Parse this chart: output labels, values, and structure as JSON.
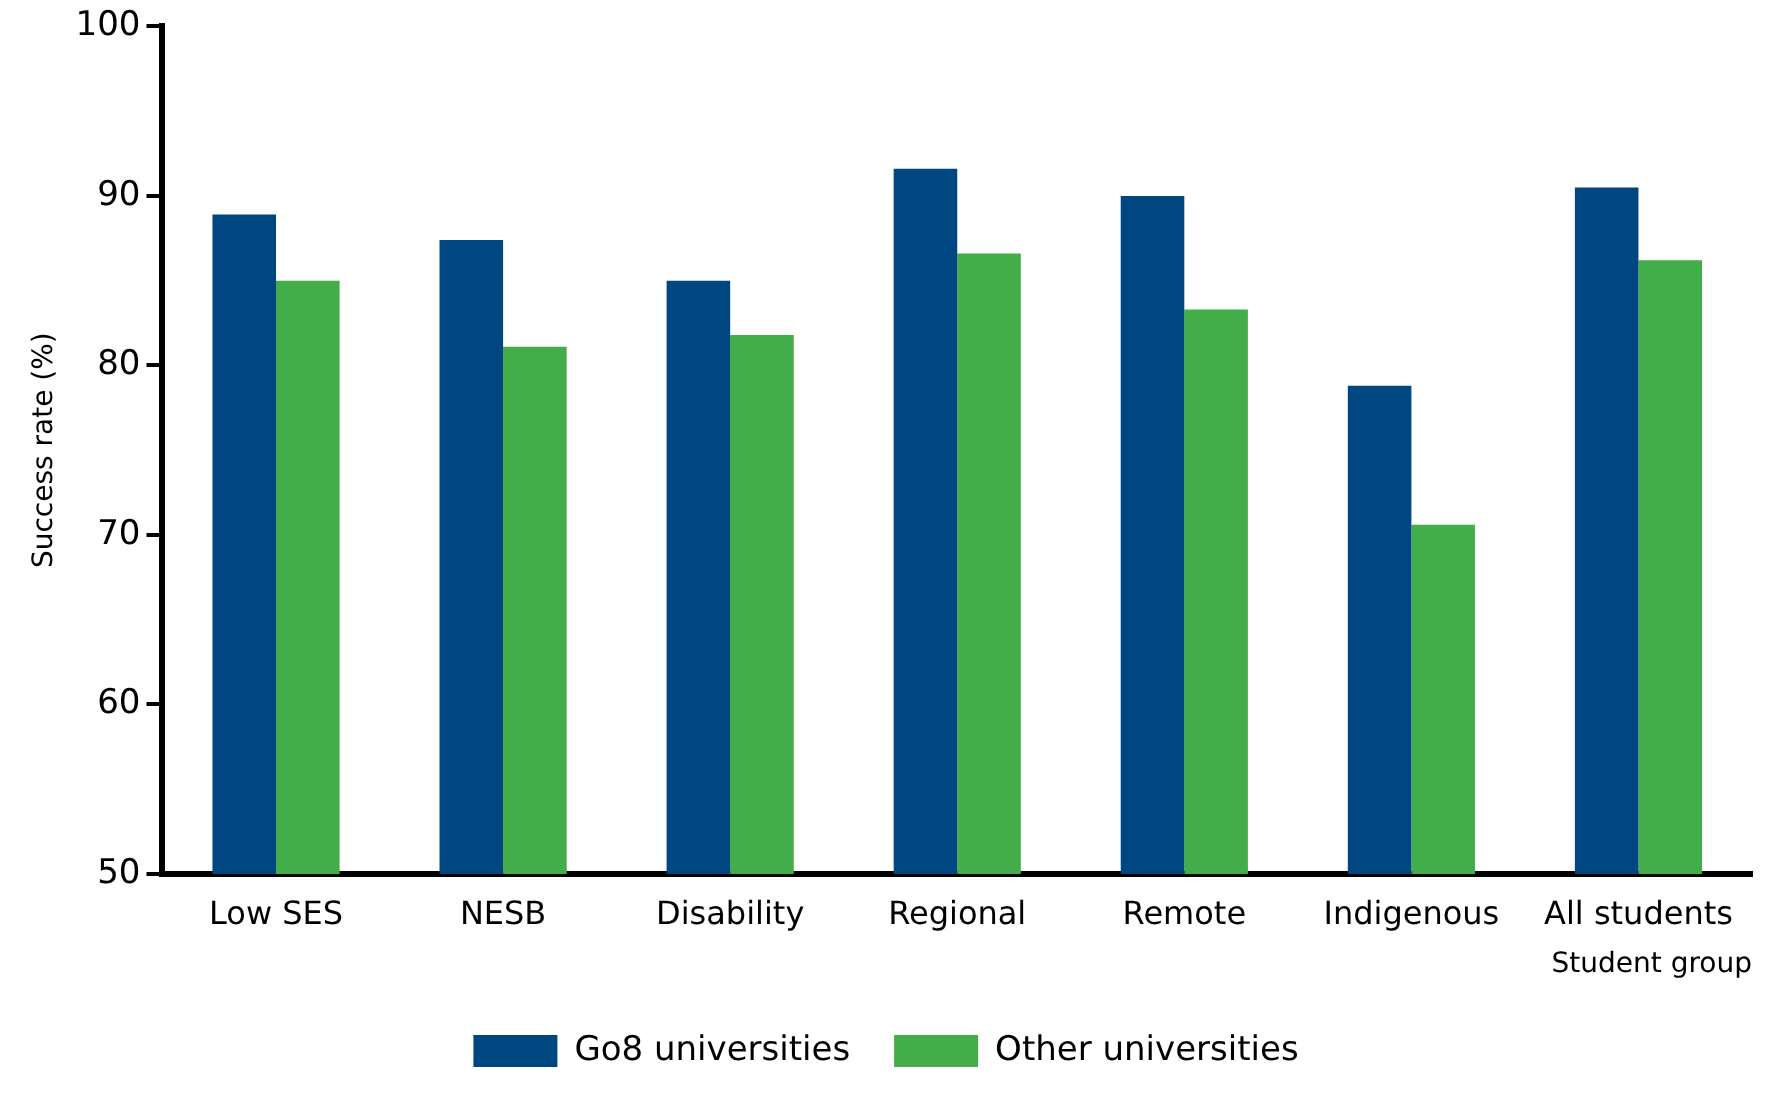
{
  "chart_data": {
    "type": "bar",
    "xlabel": "Student group",
    "ylabel": "Success rate (%)",
    "categories": [
      "Low SES",
      "NESB",
      "Disability",
      "Regional",
      "Remote",
      "Indigenous",
      "All students"
    ],
    "series": [
      {
        "name": "Go8 universities",
        "color": "#004680",
        "values": [
          88.9,
          87.4,
          85.0,
          91.6,
          90.0,
          78.8,
          90.5
        ]
      },
      {
        "name": "Other universities",
        "color": "#43ad4a",
        "values": [
          85.0,
          81.1,
          81.8,
          86.6,
          83.3,
          70.6,
          86.2
        ]
      }
    ],
    "ylim": [
      50,
      100
    ],
    "yticks": [
      50,
      60,
      70,
      80,
      90,
      100
    ],
    "grid": false,
    "legend": "bottom"
  }
}
